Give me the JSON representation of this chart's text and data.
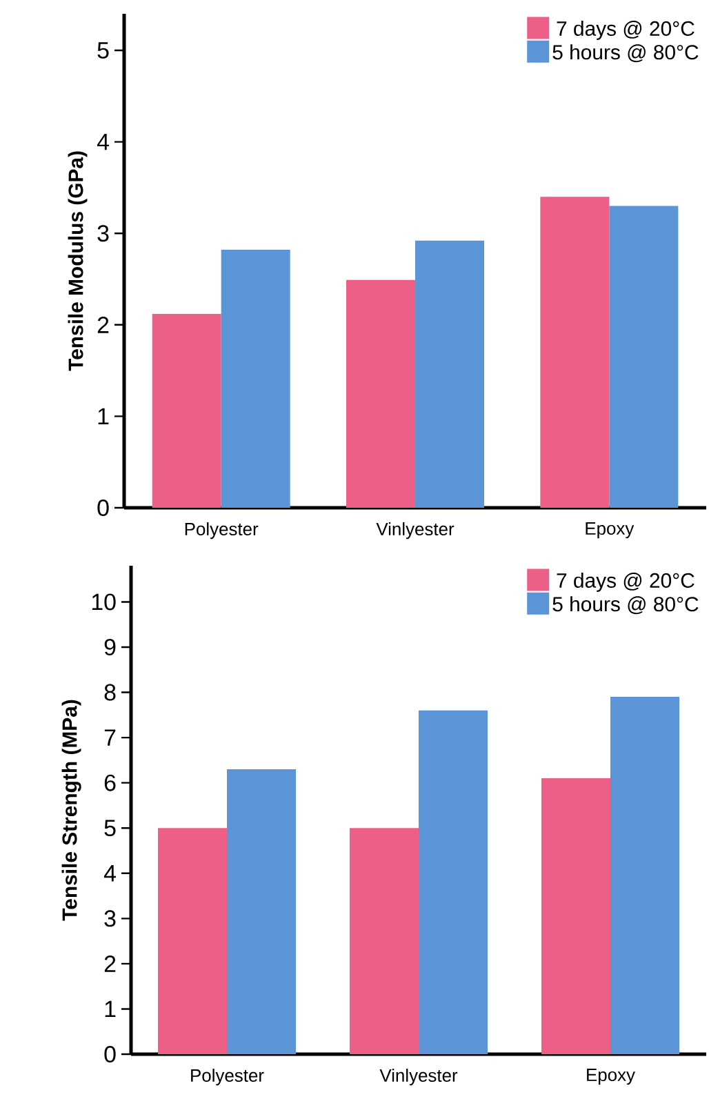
{
  "chart_data": [
    {
      "type": "bar",
      "ylabel": "Tensile Modulus (GPa)",
      "categories": [
        "Polyester",
        "Vinlyester",
        "Epoxy"
      ],
      "series": [
        {
          "name": "7 days @ 20°C",
          "color": "#ec5f87",
          "values": [
            2.12,
            2.49,
            3.4
          ]
        },
        {
          "name": "5 hours @ 80°C",
          "color": "#5b95d6",
          "values": [
            2.82,
            2.92,
            3.3
          ]
        }
      ],
      "ylim": [
        0,
        5.4
      ],
      "yticks": [
        0,
        1,
        2,
        3,
        4,
        5
      ],
      "legend": "top right"
    },
    {
      "type": "bar",
      "ylabel": "Tensile Strength (MPa)",
      "categories": [
        "Polyester",
        "Vinlyester",
        "Epoxy"
      ],
      "series": [
        {
          "name": "7 days @ 20°C",
          "color": "#ec5f87",
          "values": [
            5.0,
            5.0,
            6.1
          ]
        },
        {
          "name": "5 hours @ 80°C",
          "color": "#5b95d6",
          "values": [
            6.3,
            7.6,
            7.9
          ]
        }
      ],
      "ylim": [
        0,
        10.8
      ],
      "yticks": [
        0,
        1,
        2,
        3,
        4,
        5,
        6,
        7,
        8,
        9,
        10
      ],
      "legend": "top right"
    }
  ]
}
